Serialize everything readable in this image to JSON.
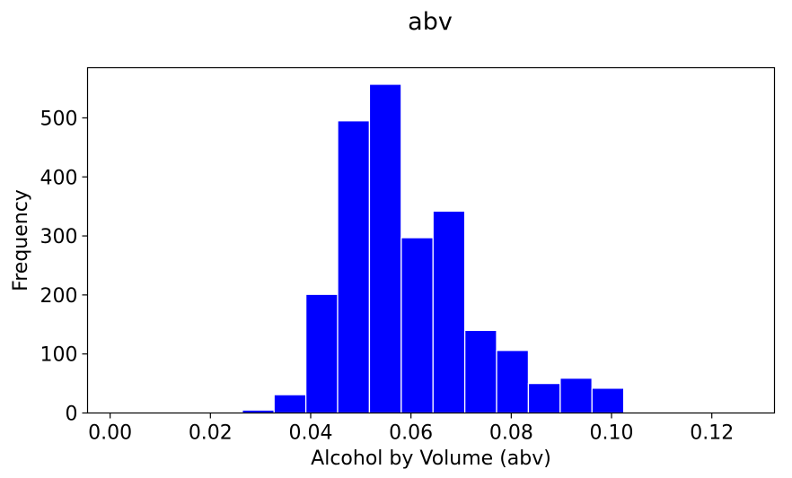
{
  "chart_data": {
    "type": "bar",
    "title": "abv",
    "xlabel": "Alcohol by Volume (abv)",
    "ylabel": "Frequency",
    "bar_color": "#0000ff",
    "edge_color": "#ffffff",
    "xlim": [
      -0.0045,
      0.1325
    ],
    "ylim": [
      0,
      585
    ],
    "xticks": [
      0.0,
      0.02,
      0.04,
      0.06,
      0.08,
      0.1,
      0.12
    ],
    "xtick_labels": [
      "0.00",
      "0.02",
      "0.04",
      "0.06",
      "0.08",
      "0.10",
      "0.12"
    ],
    "yticks": [
      0,
      100,
      200,
      300,
      400,
      500
    ],
    "ytick_labels": [
      "0",
      "100",
      "200",
      "300",
      "400",
      "500"
    ],
    "bin_edges": [
      0.001,
      0.00734,
      0.01368,
      0.02002,
      0.02636,
      0.0327,
      0.03904,
      0.04538,
      0.05172,
      0.05806,
      0.0644,
      0.07074,
      0.07708,
      0.08342,
      0.08976,
      0.0961,
      0.10244,
      0.10878,
      0.11512,
      0.12146,
      0.1278
    ],
    "values": [
      1,
      0,
      0,
      0,
      5,
      31,
      201,
      495,
      557,
      297,
      342,
      140,
      106,
      50,
      59,
      42,
      0,
      0,
      0,
      1
    ],
    "grid": false,
    "legend": "none"
  }
}
